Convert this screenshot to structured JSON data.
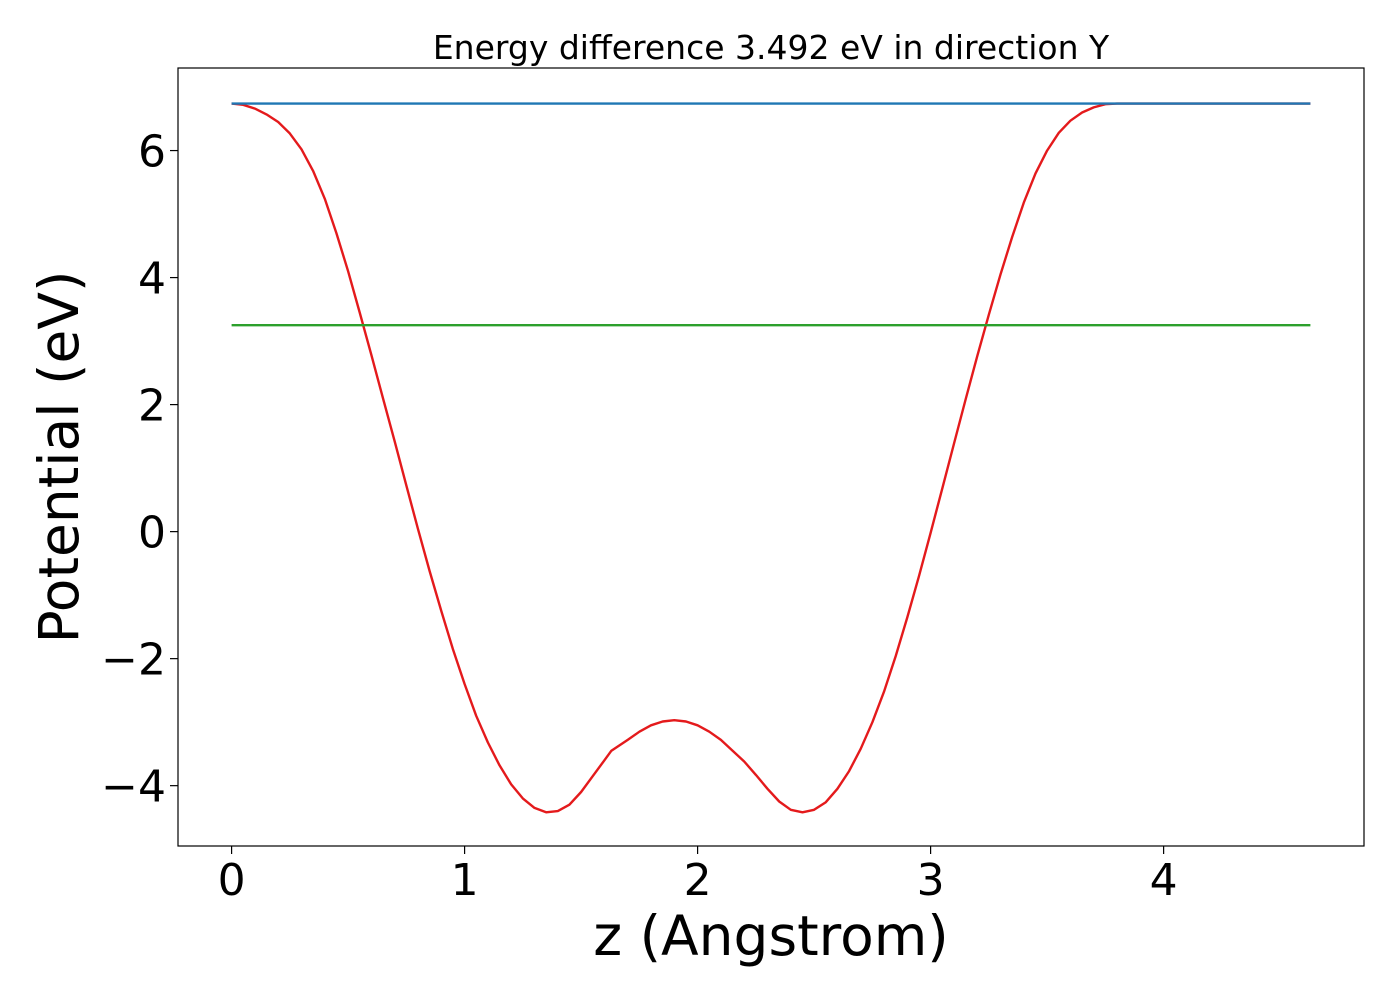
{
  "chart_data": {
    "type": "line",
    "title": "Energy difference 3.492 eV in direction Y",
    "xlabel": "z (Angstrom)",
    "ylabel": "Potential (eV)",
    "xlim": [
      -0.23,
      4.86
    ],
    "ylim": [
      -4.95,
      7.3
    ],
    "xticks": [
      0,
      1,
      2,
      3,
      4
    ],
    "yticks": [
      -4,
      -2,
      0,
      2,
      4,
      6
    ],
    "grid": false,
    "legend": "none",
    "series": [
      {
        "color": "#e41a1c",
        "x": [
          0,
          0.05,
          0.1,
          0.15,
          0.2,
          0.25,
          0.3,
          0.35,
          0.4,
          0.45,
          0.5,
          0.55,
          0.6,
          0.65,
          0.7,
          0.75,
          0.8,
          0.85,
          0.9,
          0.95,
          1.0,
          1.05,
          1.1,
          1.15,
          1.2,
          1.25,
          1.3,
          1.35,
          1.4,
          1.45,
          1.5,
          1.55,
          1.6,
          1.63,
          1.7,
          1.75,
          1.8,
          1.85,
          1.9,
          1.95,
          2.0,
          2.05,
          2.1,
          2.15,
          2.2,
          2.25,
          2.3,
          2.35,
          2.4,
          2.45,
          2.5,
          2.55,
          2.6,
          2.65,
          2.7,
          2.75,
          2.8,
          2.85,
          2.9,
          2.95,
          3.0,
          3.05,
          3.1,
          3.15,
          3.2,
          3.25,
          3.3,
          3.35,
          3.4,
          3.45,
          3.5,
          3.55,
          3.6,
          3.65,
          3.7,
          3.75,
          3.8,
          3.85,
          3.9,
          3.95,
          4.0,
          4.05,
          4.1,
          4.15,
          4.2,
          4.25,
          4.3,
          4.35,
          4.4,
          4.45,
          4.5,
          4.55,
          4.6,
          4.63
        ],
        "y": [
          6.74,
          6.72,
          6.66,
          6.57,
          6.45,
          6.27,
          6.02,
          5.68,
          5.24,
          4.7,
          4.1,
          3.45,
          2.78,
          2.1,
          1.42,
          0.73,
          0.04,
          -0.62,
          -1.25,
          -1.85,
          -2.4,
          -2.9,
          -3.32,
          -3.68,
          -3.98,
          -4.2,
          -4.35,
          -4.42,
          -4.4,
          -4.3,
          -4.1,
          -3.85,
          -3.6,
          -3.45,
          -3.28,
          -3.15,
          -3.05,
          -2.99,
          -2.97,
          -2.99,
          -3.05,
          -3.15,
          -3.28,
          -3.45,
          -3.62,
          -3.83,
          -4.05,
          -4.25,
          -4.38,
          -4.42,
          -4.38,
          -4.26,
          -4.05,
          -3.77,
          -3.42,
          -3.0,
          -2.52,
          -1.96,
          -1.35,
          -0.7,
          -0.02,
          0.68,
          1.38,
          2.08,
          2.76,
          3.42,
          4.05,
          4.64,
          5.18,
          5.64,
          6.0,
          6.28,
          6.47,
          6.6,
          6.68,
          6.73,
          6.74,
          6.74,
          6.74,
          6.74,
          6.74,
          6.74,
          6.74,
          6.74,
          6.74,
          6.74,
          6.74,
          6.74,
          6.74,
          6.74,
          6.74,
          6.74,
          6.74,
          6.74
        ]
      },
      {
        "color": "#1f77b4",
        "x": [
          0,
          4.63
        ],
        "y": [
          6.74,
          6.74
        ]
      },
      {
        "color": "#2ca02c",
        "x": [
          0,
          4.63
        ],
        "y": [
          3.25,
          3.25
        ]
      }
    ]
  }
}
